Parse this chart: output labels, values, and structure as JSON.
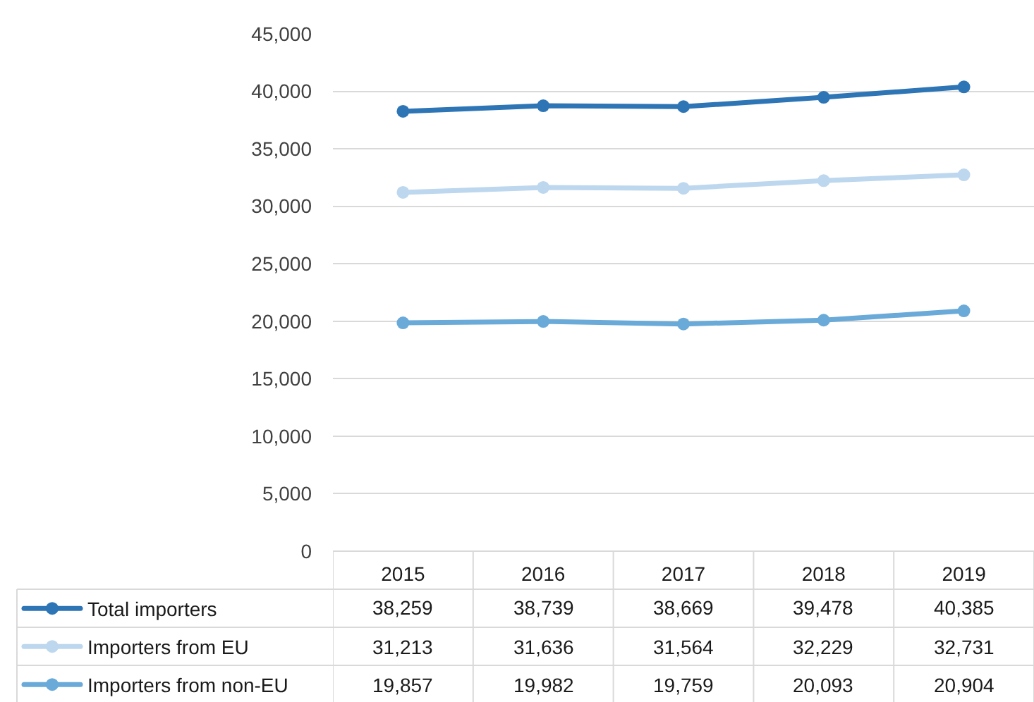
{
  "chart_data": {
    "type": "line",
    "categories": [
      "2015",
      "2016",
      "2017",
      "2018",
      "2019"
    ],
    "series": [
      {
        "name": "Total importers",
        "color": "#2e75b6",
        "values": [
          38259,
          38739,
          38669,
          39478,
          40385
        ],
        "value_labels": [
          "38,259",
          "38,739",
          "38,669",
          "39,478",
          "40,385"
        ]
      },
      {
        "name": "Importers from EU",
        "color": "#bdd7ee",
        "values": [
          31213,
          31636,
          31564,
          32229,
          32731
        ],
        "value_labels": [
          "31,213",
          "31,636",
          "31,564",
          "32,229",
          "32,731"
        ]
      },
      {
        "name": "Importers from non-EU",
        "color": "#6aaad8",
        "values": [
          19857,
          19982,
          19759,
          20093,
          20904
        ],
        "value_labels": [
          "19,857",
          "19,982",
          "19,759",
          "20,093",
          "20,904"
        ]
      }
    ],
    "ylim": [
      0,
      45000
    ],
    "yticks": [
      0,
      {
        "value": 5000,
        "label": "5,000"
      },
      {
        "value": 10000,
        "label": "10,000"
      },
      {
        "value": 15000,
        "label": "15,000"
      },
      {
        "value": 20000,
        "label": "20,000"
      },
      {
        "value": 25000,
        "label": "25,000"
      },
      {
        "value": 30000,
        "label": "30,000"
      },
      {
        "value": 35000,
        "label": "35,000"
      },
      {
        "value": 40000,
        "label": "40,000"
      },
      {
        "value": 45000,
        "label": "45,000"
      }
    ],
    "grid": "y",
    "legend": "bottom left",
    "marker": "circle",
    "line_style": "solid"
  }
}
